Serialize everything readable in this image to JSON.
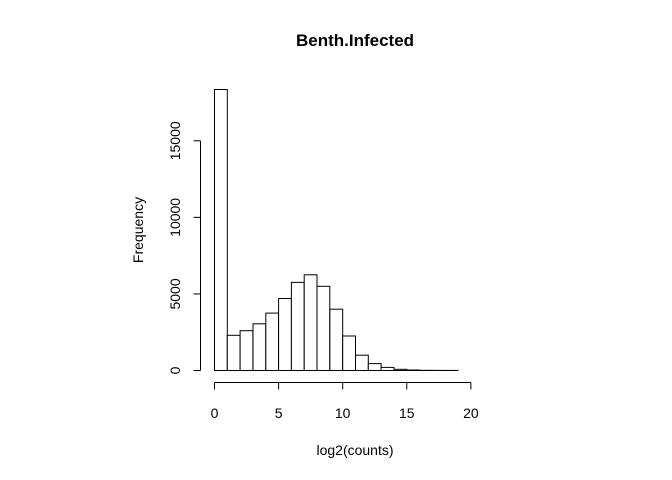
{
  "chart_data": {
    "type": "bar",
    "title": "Benth.Infected",
    "xlabel": "log2(counts)",
    "ylabel": "Frequency",
    "bin_edges": [
      0,
      1,
      2,
      3,
      4,
      5,
      6,
      7,
      8,
      9,
      10,
      11,
      12,
      13,
      14,
      15,
      16,
      17,
      18,
      19,
      20,
      21,
      22
    ],
    "values": [
      18350,
      2300,
      2600,
      3050,
      3750,
      4700,
      5750,
      6250,
      5500,
      4000,
      2250,
      1000,
      450,
      200,
      80,
      30,
      15,
      8,
      5,
      3,
      2,
      1
    ],
    "x_ticks": [
      0,
      5,
      10,
      15,
      20
    ],
    "y_ticks": [
      0,
      5000,
      10000,
      15000
    ],
    "xlim": [
      0,
      22
    ],
    "ylim": [
      0,
      18350
    ],
    "grid": false,
    "legend": "none"
  }
}
